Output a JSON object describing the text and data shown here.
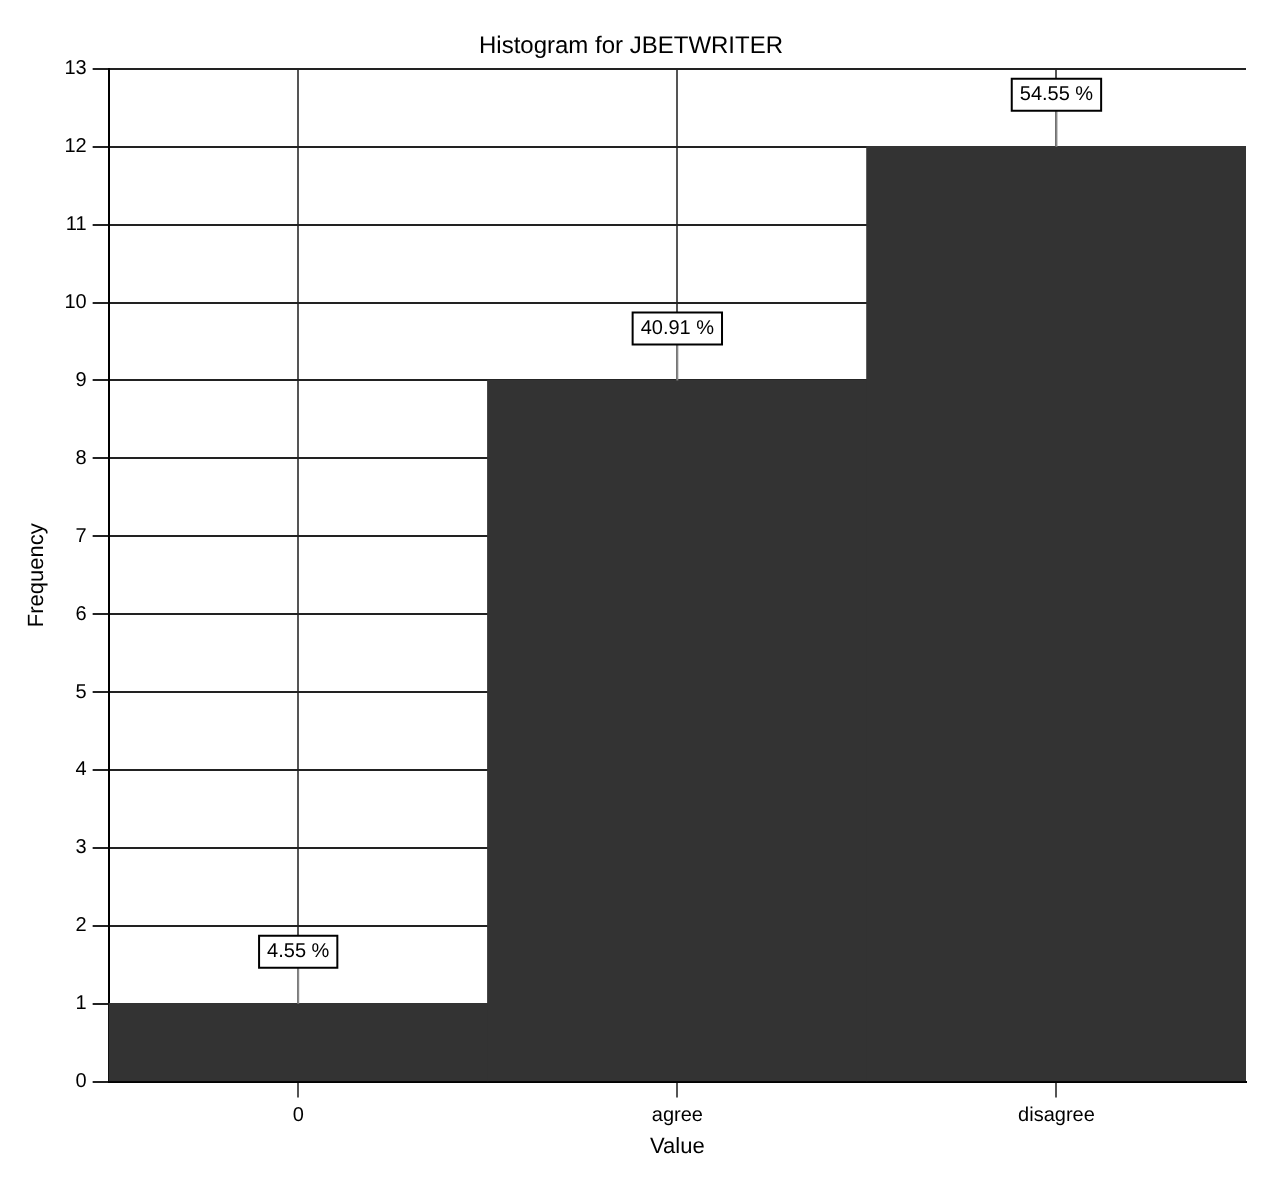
{
  "chart_data": {
    "type": "bar",
    "title": "Histogram for JBETWRITER",
    "xlabel": "Value",
    "ylabel": "Frequency",
    "categories": [
      "0",
      "agree",
      "disagree"
    ],
    "values": [
      1,
      9,
      12
    ],
    "annotations": [
      {
        "text": "4.55 %",
        "x": "0",
        "y": 1
      },
      {
        "text": "40.91 %",
        "x": "agree",
        "y": 9
      },
      {
        "text": "54.55 %",
        "x": "disagree",
        "y": 12
      }
    ],
    "color": "#333333",
    "ylim": [
      0,
      13
    ],
    "yticks": [
      0,
      1,
      2,
      3,
      4,
      5,
      6,
      7,
      8,
      9,
      10,
      11,
      12,
      13
    ],
    "grid": true,
    "legend": false
  }
}
